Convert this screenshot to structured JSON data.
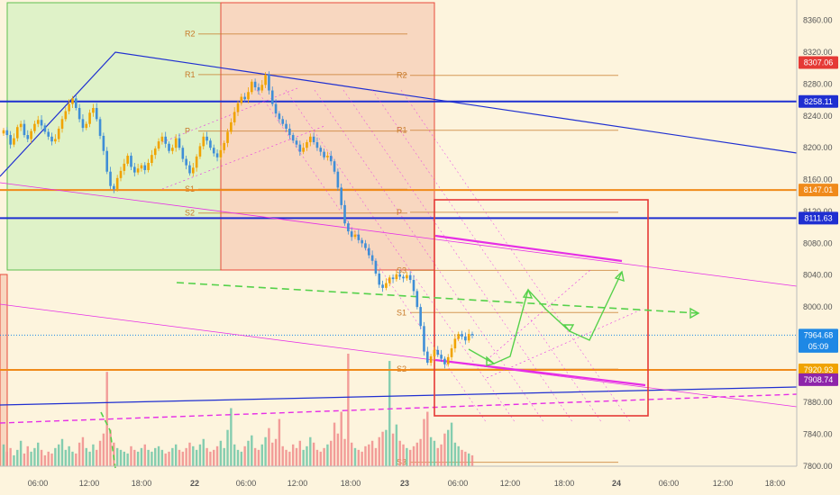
{
  "chart_data": {
    "type": "candlestick",
    "symbol": "BTCUSD",
    "theme": {
      "background": "#fdf4dd",
      "up": "#f0a300",
      "down": "#3f8ed6",
      "vol_up": "#6fc6a7",
      "vol_down": "#f08c8c",
      "pivot": "#c87a2a",
      "horiz_blue": "#1f2fd1",
      "horiz_orange": "#f08a1a",
      "magenta": "#e62ee6",
      "green_arrow": "#55d14a"
    },
    "y_axis": {
      "ylim": [
        7800,
        8380
      ],
      "ticks": [
        "8360.00",
        "8320.00",
        "8280.00",
        "8240.00",
        "8200.00",
        "8160.00",
        "8120.00",
        "8080.00",
        "8040.00",
        "8000.00",
        "7960.00",
        "7920.00",
        "7880.00",
        "7840.00",
        "7800.00"
      ]
    },
    "x_axis": {
      "ticks": [
        "06:00",
        "12:00",
        "18:00",
        "22",
        "06:00",
        "12:00",
        "18:00",
        "23",
        "06:00",
        "12:00",
        "18:00",
        "24",
        "06:00",
        "12:00",
        "18:00"
      ]
    },
    "price_tags": [
      {
        "value": 8307.06,
        "label": "8307.06",
        "color": "#e53935"
      },
      {
        "value": 8258.11,
        "label": "8258.11",
        "color": "#1f2fd1"
      },
      {
        "value": 8147.01,
        "label": "8147.01",
        "color": "#f08a1a"
      },
      {
        "value": 8111.63,
        "label": "8111.63",
        "color": "#1f2fd1"
      },
      {
        "value": 7964.68,
        "label": "7964.68",
        "color": "#1e88e5"
      },
      {
        "value": 7950.5,
        "label": "05:09",
        "color": "#1e88e5"
      },
      {
        "value": 7920.93,
        "label": "7920.93",
        "color": "#f0a300"
      },
      {
        "value": 7908.74,
        "label": "7908.74",
        "color": "#8e24aa"
      }
    ],
    "horizontal_lines": [
      {
        "value": 8258.11,
        "color": "#1f2fd1",
        "width": 2
      },
      {
        "value": 8111.63,
        "color": "#1f2fd1",
        "width": 2
      },
      {
        "value": 8147.01,
        "color": "#f08a1a",
        "width": 2
      },
      {
        "value": 7920.93,
        "color": "#f08a1a",
        "width": 2
      },
      {
        "value": 7964.68,
        "color": "#1e88e5",
        "width": 1,
        "dash": "1,2"
      }
    ],
    "pivot_sets": [
      {
        "labels": [
          {
            "name": "R2",
            "value": 8343
          },
          {
            "name": "R1",
            "value": 8292
          },
          {
            "name": "P",
            "value": 8221
          },
          {
            "name": "S1",
            "value": 8148
          },
          {
            "name": "S2",
            "value": 8118
          }
        ]
      },
      {
        "labels": [
          {
            "name": "R2",
            "value": 8291
          },
          {
            "name": "R1",
            "value": 8222
          },
          {
            "name": "P",
            "value": 8119
          },
          {
            "name": "S3",
            "value": 8046
          }
        ]
      },
      {
        "labels": [
          {
            "name": "S1",
            "value": 7993
          },
          {
            "name": "S2",
            "value": 7922
          },
          {
            "name": "S3",
            "value": 7805
          }
        ]
      }
    ],
    "candle_series": {
      "close_values": [
        8222,
        8216,
        8204,
        8212,
        8226,
        8230,
        8216,
        8211,
        8221,
        8230,
        8235,
        8228,
        8220,
        8214,
        8208,
        8211,
        8224,
        8236,
        8246,
        8255,
        8262,
        8250,
        8236,
        8225,
        8230,
        8244,
        8250,
        8236,
        8215,
        8196,
        8170,
        8152,
        8148,
        8162,
        8171,
        8180,
        8190,
        8176,
        8169,
        8174,
        8178,
        8172,
        8181,
        8191,
        8199,
        8208,
        8214,
        8205,
        8196,
        8200,
        8212,
        8200,
        8186,
        8178,
        8168,
        8175,
        8189,
        8202,
        8214,
        8209,
        8200,
        8193,
        8188,
        8197,
        8206,
        8220,
        8232,
        8245,
        8256,
        8264,
        8261,
        8270,
        8283,
        8276,
        8272,
        8279,
        8292,
        8272,
        8255,
        8243,
        8236,
        8230,
        8224,
        8216,
        8209,
        8204,
        8195,
        8200,
        8207,
        8214,
        8207,
        8200,
        8195,
        8188,
        8190,
        8183,
        8170,
        8150,
        8128,
        8105,
        8095,
        8088,
        8091,
        8084,
        8080,
        8074,
        8065,
        8058,
        8042,
        8028,
        8024,
        8030,
        8037,
        8035,
        8041,
        8038,
        8036,
        8040,
        8034,
        8020,
        8000,
        7976,
        7944,
        7930,
        7938,
        7946,
        7940,
        7935,
        7928,
        7937,
        7948,
        7960,
        7966,
        7963,
        7958,
        7966,
        7964.68
      ],
      "open_value": 8218
    },
    "volume_series": [
      12,
      8,
      10,
      6,
      9,
      14,
      7,
      11,
      8,
      10,
      13,
      9,
      6,
      8,
      7,
      10,
      12,
      15,
      9,
      11,
      8,
      7,
      13,
      16,
      10,
      8,
      12,
      9,
      14,
      18,
      52,
      20,
      13,
      10,
      9,
      8,
      7,
      11,
      9,
      8,
      10,
      12,
      9,
      8,
      10,
      11,
      9,
      7,
      8,
      10,
      12,
      9,
      8,
      10,
      13,
      11,
      9,
      12,
      15,
      10,
      8,
      9,
      11,
      14,
      10,
      20,
      32,
      12,
      9,
      8,
      11,
      14,
      17,
      10,
      9,
      12,
      16,
      21,
      13,
      15,
      26,
      11,
      9,
      8,
      12,
      10,
      14,
      9,
      11,
      16,
      13,
      9,
      8,
      10,
      12,
      14,
      24,
      18,
      30,
      15,
      62,
      13,
      10,
      9,
      8,
      11,
      12,
      14,
      10,
      16,
      19,
      20,
      58,
      18,
      23,
      14,
      12,
      10,
      9,
      11,
      13,
      15,
      26,
      30,
      16,
      14,
      10,
      12,
      18,
      20,
      24,
      13,
      11,
      9,
      8,
      7,
      6
    ],
    "annotations": {
      "zones": [
        "green-session-zone",
        "red-session-zone",
        "red-session-zone-lower-left",
        "red-target-box"
      ],
      "trendlines": [
        "blue-descending-trendline",
        "blue-ascending-rising-line",
        "magenta-channel-lower-line",
        "magenta-dashed-support-line",
        "green-dashed-projection-line"
      ]
    }
  }
}
